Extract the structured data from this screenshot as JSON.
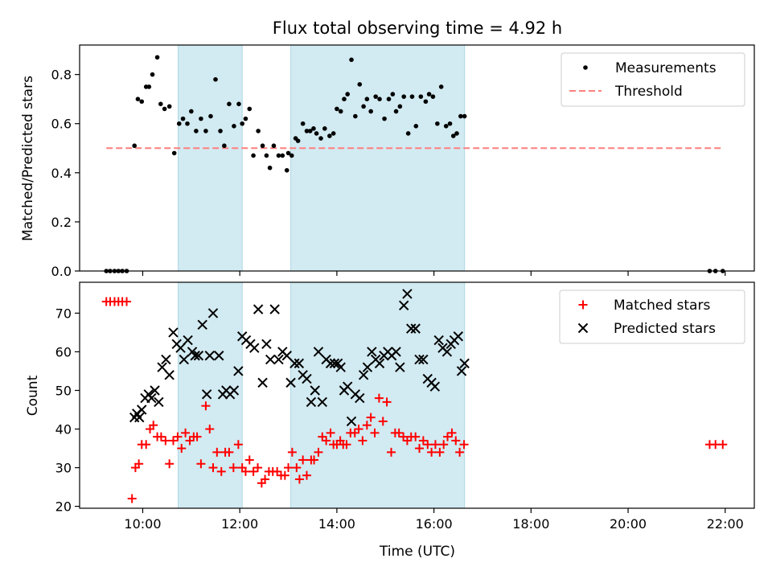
{
  "figure": {
    "title": "Flux total observing time = 4.92 h",
    "xlabel": "Time (UTC)",
    "x_ticks": [
      {
        "label": "10:00",
        "hours": 10
      },
      {
        "label": "12:00",
        "hours": 12
      },
      {
        "label": "14:00",
        "hours": 14
      },
      {
        "label": "16:00",
        "hours": 16
      },
      {
        "label": "18:00",
        "hours": 18
      },
      {
        "label": "20:00",
        "hours": 20
      },
      {
        "label": "22:00",
        "hours": 22
      }
    ],
    "xlim_hours": [
      8.7,
      22.6
    ],
    "shaded_intervals_hours": [
      [
        10.73,
        12.05
      ],
      [
        13.05,
        16.63
      ]
    ],
    "shade_color": "#add8e6",
    "colors": {
      "measurements": "#000000",
      "threshold": "#ff7f7f",
      "matched": "#ff0000",
      "predicted": "#000000"
    }
  },
  "chart_data": [
    {
      "type": "scatter",
      "panel": "top",
      "ylabel": "Matched/Predicted stars",
      "ylim": [
        0,
        0.92
      ],
      "y_ticks": [
        "0.0",
        "0.2",
        "0.4",
        "0.6",
        "0.8"
      ],
      "grid": false,
      "legend": "top-right",
      "series": [
        {
          "name": "Measurements",
          "marker": "dot",
          "x_hours": [
            9.25,
            9.33,
            9.42,
            9.5,
            9.58,
            9.67,
            9.83,
            9.9,
            9.98,
            10.07,
            10.13,
            10.2,
            10.3,
            10.37,
            10.45,
            10.55,
            10.65,
            10.75,
            10.83,
            10.92,
            11.0,
            11.1,
            11.2,
            11.3,
            11.4,
            11.5,
            11.6,
            11.68,
            11.78,
            11.88,
            11.98,
            12.05,
            12.12,
            12.2,
            12.28,
            12.38,
            12.47,
            12.55,
            12.62,
            12.7,
            12.8,
            12.88,
            12.97,
            13.0,
            13.07,
            13.15,
            13.2,
            13.3,
            13.38,
            13.45,
            13.52,
            13.58,
            13.67,
            13.75,
            13.85,
            13.93,
            14.0,
            14.08,
            14.15,
            14.22,
            14.3,
            14.38,
            14.47,
            14.55,
            14.62,
            14.7,
            14.8,
            14.88,
            14.98,
            15.07,
            15.15,
            15.22,
            15.3,
            15.38,
            15.47,
            15.55,
            15.63,
            15.73,
            15.83,
            15.9,
            15.98,
            16.07,
            16.15,
            16.25,
            16.33,
            16.4,
            16.47,
            16.55,
            16.63,
            21.68,
            21.8,
            21.95
          ],
          "y": [
            0.0,
            0.0,
            0.0,
            0.0,
            0.0,
            0.0,
            0.51,
            0.7,
            0.69,
            0.75,
            0.75,
            0.8,
            0.87,
            0.68,
            0.66,
            0.67,
            0.48,
            0.6,
            0.62,
            0.6,
            0.65,
            0.57,
            0.62,
            0.57,
            0.63,
            0.78,
            0.57,
            0.51,
            0.68,
            0.59,
            0.68,
            0.6,
            0.62,
            0.66,
            0.47,
            0.57,
            0.51,
            0.47,
            0.42,
            0.51,
            0.47,
            0.47,
            0.41,
            0.48,
            0.47,
            0.54,
            0.53,
            0.6,
            0.57,
            0.57,
            0.58,
            0.56,
            0.54,
            0.58,
            0.55,
            0.56,
            0.66,
            0.65,
            0.7,
            0.72,
            0.86,
            0.63,
            0.76,
            0.67,
            0.7,
            0.65,
            0.71,
            0.7,
            0.62,
            0.7,
            0.72,
            0.65,
            0.67,
            0.71,
            0.56,
            0.71,
            0.59,
            0.71,
            0.69,
            0.72,
            0.71,
            0.6,
            0.75,
            0.59,
            0.6,
            0.55,
            0.56,
            0.63,
            0.63,
            0.0,
            0.0,
            0.0
          ]
        },
        {
          "name": "Threshold",
          "marker": "dashed-line",
          "x_hours": [
            9.25,
            21.95
          ],
          "y": [
            0.5,
            0.5
          ]
        }
      ]
    },
    {
      "type": "scatter",
      "panel": "bottom",
      "ylabel": "Count",
      "ylim": [
        19.5,
        78
      ],
      "y_ticks": [
        "20",
        "30",
        "40",
        "50",
        "60",
        "70"
      ],
      "grid": false,
      "legend": "top-right",
      "series": [
        {
          "name": "Matched stars",
          "marker": "plus",
          "x_hours": [
            9.25,
            9.33,
            9.42,
            9.5,
            9.58,
            9.67,
            9.78,
            9.85,
            9.92,
            9.98,
            10.07,
            10.15,
            10.22,
            10.3,
            10.38,
            10.47,
            10.55,
            10.63,
            10.72,
            10.8,
            10.88,
            10.97,
            11.05,
            11.12,
            11.2,
            11.3,
            11.38,
            11.45,
            11.53,
            11.62,
            11.7,
            11.78,
            11.87,
            11.97,
            12.05,
            12.12,
            12.2,
            12.28,
            12.37,
            12.45,
            12.52,
            12.6,
            12.68,
            12.77,
            12.85,
            12.93,
            13.0,
            13.08,
            13.17,
            13.23,
            13.3,
            13.38,
            13.47,
            13.53,
            13.62,
            13.7,
            13.78,
            13.87,
            13.93,
            14.0,
            14.07,
            14.13,
            14.2,
            14.28,
            14.37,
            14.45,
            14.53,
            14.62,
            14.7,
            14.78,
            14.87,
            14.95,
            15.03,
            15.12,
            15.2,
            15.28,
            15.37,
            15.45,
            15.53,
            15.62,
            15.7,
            15.78,
            15.87,
            15.95,
            16.03,
            16.12,
            16.2,
            16.28,
            16.37,
            16.45,
            16.53,
            16.62,
            21.68,
            21.8,
            21.95
          ],
          "y": [
            73,
            73,
            73,
            73,
            73,
            73,
            22,
            30,
            31,
            36,
            36,
            40,
            41,
            38,
            38,
            37,
            31,
            37,
            38,
            35,
            39,
            37,
            38,
            38,
            31,
            46,
            40,
            30,
            34,
            29,
            34,
            34,
            30,
            36,
            30,
            29,
            32,
            29,
            30,
            26,
            27,
            29,
            29,
            29,
            28,
            28,
            30,
            34,
            30,
            27,
            32,
            28,
            32,
            32,
            34,
            38,
            37,
            39,
            36,
            36,
            37,
            36,
            36,
            39,
            39,
            40,
            37,
            41,
            43,
            39,
            48,
            42,
            47,
            34,
            39,
            39,
            38,
            37,
            38,
            38,
            35,
            37,
            36,
            34,
            36,
            34,
            36,
            38,
            39,
            37,
            34,
            36,
            36,
            36,
            36
          ],
          "note_x": []
        },
        {
          "name": "Predicted stars",
          "marker": "x",
          "x_hours": [
            9.83,
            9.88,
            9.93,
            9.98,
            10.05,
            10.12,
            10.18,
            10.25,
            10.33,
            10.4,
            10.48,
            10.55,
            10.63,
            10.7,
            10.78,
            10.85,
            10.93,
            11.02,
            11.08,
            11.15,
            11.23,
            11.32,
            11.38,
            11.45,
            11.57,
            11.65,
            11.72,
            11.8,
            11.88,
            11.97,
            12.05,
            12.13,
            12.22,
            12.3,
            12.38,
            12.47,
            12.55,
            12.63,
            12.72,
            12.8,
            12.88,
            12.97,
            13.05,
            13.13,
            13.22,
            13.3,
            13.38,
            13.47,
            13.55,
            13.62,
            13.7,
            13.78,
            13.87,
            13.95,
            14.02,
            14.08,
            14.15,
            14.22,
            14.3,
            14.38,
            14.47,
            14.55,
            14.63,
            14.72,
            14.8,
            14.88,
            14.97,
            15.05,
            15.13,
            15.22,
            15.3,
            15.38,
            15.45,
            15.53,
            15.62,
            15.7,
            15.78,
            15.87,
            15.95,
            16.02,
            16.1,
            16.18,
            16.27,
            16.35,
            16.42,
            16.5,
            16.57,
            16.63
          ],
          "y": [
            43,
            44,
            43,
            45,
            48,
            49,
            48,
            50,
            47,
            56,
            58,
            54,
            65,
            62,
            61,
            58,
            63,
            60,
            59,
            59,
            67,
            49,
            59,
            70,
            59,
            49,
            50,
            49,
            50,
            55,
            64,
            63,
            62,
            61,
            71,
            52,
            62,
            58,
            71,
            58,
            60,
            59,
            52,
            57,
            57,
            54,
            53,
            47,
            50,
            60,
            47,
            58,
            57,
            57,
            57,
            56,
            50,
            51,
            42,
            49,
            48,
            54,
            56,
            60,
            58,
            57,
            59,
            60,
            59,
            60,
            56,
            72,
            75,
            66,
            66,
            58,
            58,
            53,
            52,
            51,
            63,
            61,
            60,
            62,
            63,
            64,
            55,
            57
          ]
        }
      ]
    }
  ]
}
